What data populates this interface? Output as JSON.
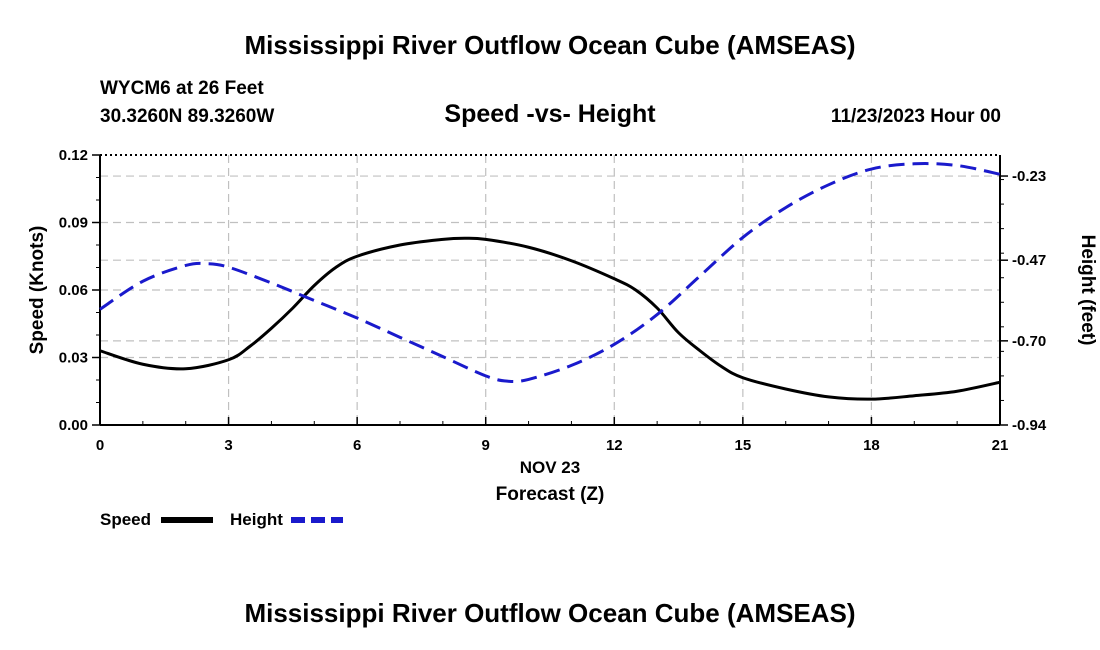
{
  "header": {
    "title": "Mississippi River Outflow Ocean Cube (AMSEAS)",
    "station": "WYCM6 at 26 Feet",
    "coords": "30.3260N  89.3260W",
    "subtitle": "Speed -vs- Height",
    "datetime": "11/23/2023 Hour 00"
  },
  "footer": {
    "title": "Mississippi River Outflow Ocean Cube (AMSEAS)"
  },
  "legend": {
    "speed_label": "Speed",
    "height_label": "Height"
  },
  "colors": {
    "speed": "#000000",
    "height": "#1a1acc",
    "grid": "#c0c0c0"
  },
  "chart_data": {
    "type": "line",
    "title": "Speed -vs- Height",
    "xlabel": "Forecast (Z)",
    "xlabel_date": "NOV 23",
    "ylabel_left": "Speed (Knots)",
    "ylabel_right": "Height (feet)",
    "xlim": [
      0,
      21
    ],
    "ylim_left": [
      0,
      0.12
    ],
    "ylim_right": [
      -0.94,
      -0.17
    ],
    "x_ticks": [
      0,
      3,
      6,
      9,
      12,
      15,
      18,
      21
    ],
    "x_tick_labels": [
      "0",
      "3",
      "6",
      "9",
      "12",
      "15",
      "18",
      "21"
    ],
    "y_left_ticks": [
      0,
      0.03,
      0.06,
      0.09,
      0.12
    ],
    "y_left_tick_labels": [
      "0.00",
      "0.03",
      "0.06",
      "0.09",
      "0.12"
    ],
    "y_right_ticks": [
      -0.94,
      -0.7,
      -0.47,
      -0.23
    ],
    "y_right_tick_labels": [
      "-0.94",
      "-0.70",
      "-0.47",
      "-0.23"
    ],
    "grid": true,
    "series": [
      {
        "name": "Speed",
        "axis": "left",
        "style": "solid",
        "x": [
          0,
          1,
          2,
          3,
          3.5,
          4,
          4.5,
          5,
          5.5,
          6,
          7,
          8,
          8.5,
          9,
          10,
          11,
          12,
          12.5,
          13,
          13.5,
          14,
          14.5,
          15,
          16,
          17,
          18,
          19,
          20,
          21
        ],
        "values": [
          0.033,
          0.027,
          0.025,
          0.029,
          0.035,
          0.043,
          0.052,
          0.062,
          0.07,
          0.075,
          0.08,
          0.0825,
          0.083,
          0.0825,
          0.079,
          0.073,
          0.065,
          0.06,
          0.052,
          0.041,
          0.033,
          0.026,
          0.021,
          0.016,
          0.0125,
          0.0115,
          0.013,
          0.015,
          0.019
        ]
      },
      {
        "name": "Height",
        "axis": "right",
        "style": "dashed",
        "x": [
          0,
          1,
          2,
          2.5,
          3,
          4,
          5,
          6,
          7,
          8,
          9,
          9.5,
          10,
          11,
          12,
          13,
          14,
          15,
          16,
          17,
          18,
          19,
          20,
          21
        ],
        "values": [
          -0.61,
          -0.53,
          -0.485,
          -0.48,
          -0.49,
          -0.535,
          -0.585,
          -0.635,
          -0.69,
          -0.745,
          -0.8,
          -0.815,
          -0.81,
          -0.77,
          -0.71,
          -0.625,
          -0.515,
          -0.405,
          -0.32,
          -0.255,
          -0.21,
          -0.195,
          -0.2,
          -0.225
        ]
      }
    ]
  }
}
